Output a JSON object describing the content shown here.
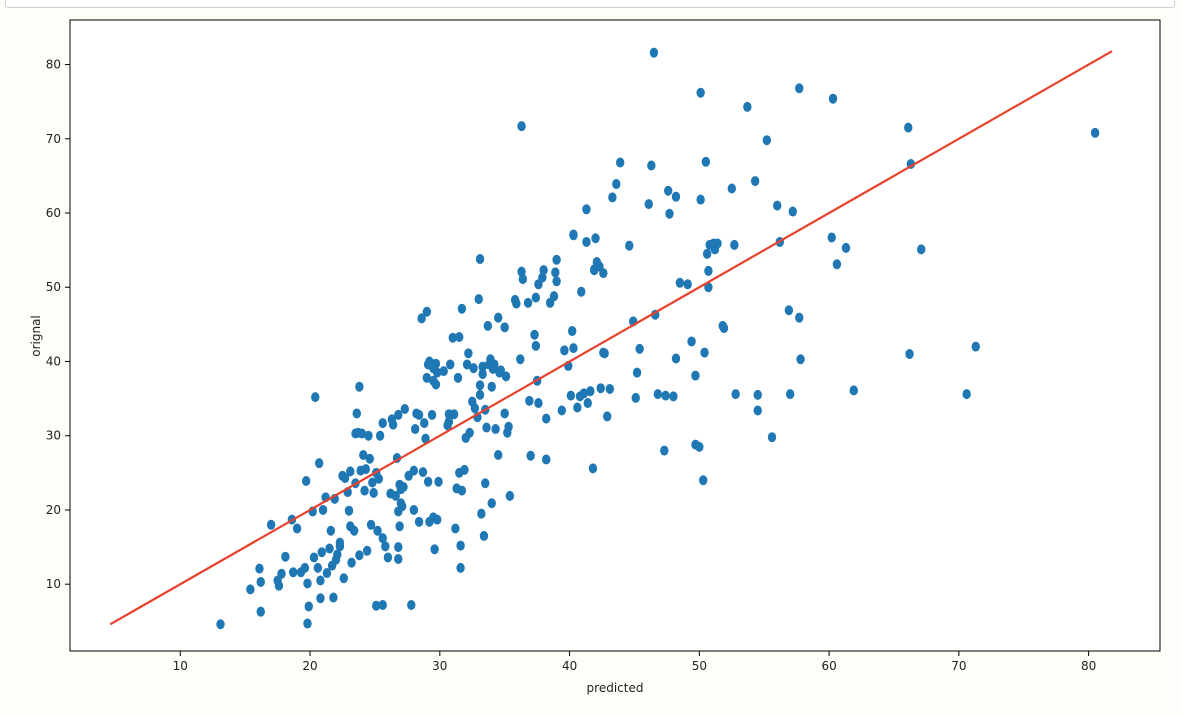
{
  "chart_data": {
    "type": "scatter",
    "title": "",
    "xlabel": "predicted",
    "ylabel": "orignal",
    "xlim": [
      1.5,
      85.5
    ],
    "ylim": [
      1,
      86
    ],
    "x_ticks": [
      10,
      20,
      30,
      40,
      50,
      60,
      70,
      80
    ],
    "y_ticks": [
      10,
      20,
      30,
      40,
      50,
      60,
      70,
      80
    ],
    "grid": false,
    "legend": "none",
    "colors": {
      "points": "#1f77b4",
      "line": "#e8412c",
      "background": "#fffdf8"
    },
    "reference_line": {
      "x": [
        4.6,
        81.8
      ],
      "y": [
        4.6,
        81.8
      ]
    },
    "series": [
      {
        "points": [
          [
            13.1,
            4.6
          ],
          [
            15.4,
            9.3
          ],
          [
            16.1,
            12.1
          ],
          [
            16.2,
            10.3
          ],
          [
            16.2,
            6.3
          ],
          [
            17.0,
            18.0
          ],
          [
            17.5,
            10.5
          ],
          [
            17.6,
            9.8
          ],
          [
            17.8,
            11.4
          ],
          [
            18.1,
            13.7
          ],
          [
            18.6,
            18.7
          ],
          [
            18.7,
            11.6
          ],
          [
            19.0,
            17.5
          ],
          [
            19.3,
            11.6
          ],
          [
            19.6,
            12.2
          ],
          [
            19.7,
            23.9
          ],
          [
            19.8,
            10.1
          ],
          [
            19.8,
            4.7
          ],
          [
            19.9,
            7.0
          ],
          [
            20.2,
            19.8
          ],
          [
            20.3,
            13.6
          ],
          [
            20.4,
            35.2
          ],
          [
            20.6,
            12.2
          ],
          [
            20.7,
            26.3
          ],
          [
            20.8,
            10.5
          ],
          [
            20.8,
            8.1
          ],
          [
            20.9,
            14.3
          ],
          [
            21.0,
            20.0
          ],
          [
            21.2,
            21.7
          ],
          [
            21.3,
            11.5
          ],
          [
            21.5,
            14.8
          ],
          [
            21.6,
            17.2
          ],
          [
            21.7,
            12.5
          ],
          [
            21.8,
            8.2
          ],
          [
            21.9,
            21.5
          ],
          [
            22.0,
            13.3
          ],
          [
            22.1,
            14.0
          ],
          [
            22.3,
            15.1
          ],
          [
            22.3,
            15.6
          ],
          [
            22.5,
            24.6
          ],
          [
            22.6,
            10.8
          ],
          [
            22.7,
            24.3
          ],
          [
            22.9,
            22.4
          ],
          [
            23.0,
            19.9
          ],
          [
            23.1,
            25.2
          ],
          [
            23.1,
            17.8
          ],
          [
            23.2,
            12.9
          ],
          [
            23.4,
            17.2
          ],
          [
            23.5,
            30.3
          ],
          [
            23.5,
            23.6
          ],
          [
            23.6,
            33.0
          ],
          [
            23.7,
            30.4
          ],
          [
            23.8,
            36.6
          ],
          [
            23.8,
            13.9
          ],
          [
            23.9,
            25.3
          ],
          [
            24.0,
            30.3
          ],
          [
            24.1,
            27.4
          ],
          [
            24.2,
            22.6
          ],
          [
            24.3,
            25.5
          ],
          [
            24.4,
            14.5
          ],
          [
            24.5,
            30.0
          ],
          [
            24.6,
            26.9
          ],
          [
            24.7,
            18.0
          ],
          [
            24.8,
            23.7
          ],
          [
            24.9,
            22.3
          ],
          [
            25.1,
            25.0
          ],
          [
            25.1,
            7.1
          ],
          [
            25.2,
            17.2
          ],
          [
            25.3,
            24.2
          ],
          [
            25.4,
            30.0
          ],
          [
            25.6,
            7.2
          ],
          [
            25.6,
            16.2
          ],
          [
            25.6,
            31.7
          ],
          [
            25.8,
            15.1
          ],
          [
            26.0,
            13.6
          ],
          [
            26.2,
            22.2
          ],
          [
            26.3,
            32.2
          ],
          [
            26.4,
            31.5
          ],
          [
            26.6,
            21.9
          ],
          [
            26.7,
            27.0
          ],
          [
            26.8,
            19.8
          ],
          [
            26.8,
            15.0
          ],
          [
            26.8,
            13.4
          ],
          [
            26.8,
            32.8
          ],
          [
            26.9,
            17.8
          ],
          [
            26.9,
            23.4
          ],
          [
            27.0,
            22.8
          ],
          [
            27.0,
            20.9
          ],
          [
            27.1,
            20.5
          ],
          [
            27.2,
            23.1
          ],
          [
            27.3,
            33.6
          ],
          [
            27.6,
            24.6
          ],
          [
            27.8,
            7.2
          ],
          [
            28.0,
            25.3
          ],
          [
            28.0,
            20.0
          ],
          [
            28.1,
            30.9
          ],
          [
            28.2,
            33.0
          ],
          [
            28.4,
            18.4
          ],
          [
            28.4,
            32.8
          ],
          [
            28.6,
            45.8
          ],
          [
            28.7,
            25.1
          ],
          [
            28.8,
            31.7
          ],
          [
            28.9,
            29.6
          ],
          [
            29.0,
            46.7
          ],
          [
            29.0,
            37.8
          ],
          [
            29.1,
            39.6
          ],
          [
            29.1,
            23.8
          ],
          [
            29.2,
            40.0
          ],
          [
            29.2,
            18.4
          ],
          [
            29.4,
            32.8
          ],
          [
            29.5,
            39.1
          ],
          [
            29.5,
            19.0
          ],
          [
            29.5,
            37.4
          ],
          [
            29.6,
            14.7
          ],
          [
            29.7,
            39.7
          ],
          [
            29.7,
            36.9
          ],
          [
            29.8,
            38.5
          ],
          [
            29.8,
            18.7
          ],
          [
            29.9,
            23.8
          ],
          [
            30.3,
            38.7
          ],
          [
            30.6,
            31.4
          ],
          [
            30.7,
            31.9
          ],
          [
            30.7,
            32.9
          ],
          [
            30.8,
            39.6
          ],
          [
            31.0,
            43.2
          ],
          [
            31.1,
            32.9
          ],
          [
            31.2,
            17.5
          ],
          [
            31.3,
            22.9
          ],
          [
            31.4,
            37.8
          ],
          [
            31.5,
            43.3
          ],
          [
            31.5,
            25.0
          ],
          [
            31.6,
            15.2
          ],
          [
            31.6,
            12.2
          ],
          [
            31.7,
            47.1
          ],
          [
            31.7,
            22.6
          ],
          [
            31.9,
            25.4
          ],
          [
            32.0,
            29.7
          ],
          [
            32.1,
            39.6
          ],
          [
            32.2,
            41.1
          ],
          [
            32.3,
            30.4
          ],
          [
            32.5,
            34.6
          ],
          [
            32.6,
            39.1
          ],
          [
            32.7,
            33.7
          ],
          [
            32.9,
            32.5
          ],
          [
            33.0,
            48.4
          ],
          [
            33.1,
            35.5
          ],
          [
            33.1,
            36.8
          ],
          [
            33.1,
            53.8
          ],
          [
            33.2,
            19.5
          ],
          [
            33.3,
            38.3
          ],
          [
            33.3,
            39.3
          ],
          [
            33.4,
            16.5
          ],
          [
            33.5,
            23.6
          ],
          [
            33.5,
            33.5
          ],
          [
            33.6,
            31.1
          ],
          [
            33.7,
            44.8
          ],
          [
            33.8,
            39.6
          ],
          [
            33.9,
            40.3
          ],
          [
            34.0,
            20.9
          ],
          [
            34.0,
            36.6
          ],
          [
            34.1,
            39.0
          ],
          [
            34.2,
            39.6
          ],
          [
            34.3,
            30.9
          ],
          [
            34.5,
            45.9
          ],
          [
            34.5,
            27.4
          ],
          [
            34.6,
            38.5
          ],
          [
            34.7,
            38.8
          ],
          [
            35.0,
            44.6
          ],
          [
            35.0,
            33.0
          ],
          [
            35.1,
            38.0
          ],
          [
            35.2,
            30.4
          ],
          [
            35.3,
            31.2
          ],
          [
            35.4,
            21.9
          ],
          [
            35.8,
            48.3
          ],
          [
            35.9,
            47.8
          ],
          [
            36.2,
            40.3
          ],
          [
            36.3,
            71.7
          ],
          [
            36.3,
            52.1
          ],
          [
            36.4,
            51.1
          ],
          [
            36.8,
            47.9
          ],
          [
            36.9,
            34.7
          ],
          [
            37.0,
            27.3
          ],
          [
            37.3,
            43.6
          ],
          [
            37.4,
            42.1
          ],
          [
            37.4,
            48.6
          ],
          [
            37.5,
            37.4
          ],
          [
            37.6,
            34.4
          ],
          [
            37.6,
            50.4
          ],
          [
            37.9,
            51.3
          ],
          [
            38.0,
            52.3
          ],
          [
            38.2,
            32.3
          ],
          [
            38.2,
            26.8
          ],
          [
            38.5,
            47.9
          ],
          [
            38.8,
            48.8
          ],
          [
            38.9,
            52.0
          ],
          [
            39.0,
            53.7
          ],
          [
            39.0,
            50.8
          ],
          [
            39.4,
            33.4
          ],
          [
            39.6,
            41.5
          ],
          [
            39.9,
            39.4
          ],
          [
            40.1,
            35.4
          ],
          [
            40.2,
            44.1
          ],
          [
            40.3,
            41.8
          ],
          [
            40.3,
            57.1
          ],
          [
            40.3,
            57.0
          ],
          [
            40.6,
            33.8
          ],
          [
            40.8,
            35.3
          ],
          [
            40.9,
            49.4
          ],
          [
            41.1,
            35.7
          ],
          [
            41.3,
            60.5
          ],
          [
            41.3,
            56.1
          ],
          [
            41.4,
            34.4
          ],
          [
            41.6,
            36.0
          ],
          [
            41.8,
            25.6
          ],
          [
            41.9,
            52.4
          ],
          [
            41.9,
            52.3
          ],
          [
            42.0,
            56.6
          ],
          [
            42.1,
            53.4
          ],
          [
            42.3,
            52.8
          ],
          [
            42.4,
            36.4
          ],
          [
            42.6,
            51.9
          ],
          [
            42.6,
            41.2
          ],
          [
            42.7,
            41.1
          ],
          [
            42.9,
            32.6
          ],
          [
            43.1,
            36.3
          ],
          [
            43.3,
            62.1
          ],
          [
            43.6,
            63.9
          ],
          [
            43.9,
            66.8
          ],
          [
            44.6,
            55.6
          ],
          [
            44.9,
            45.4
          ],
          [
            45.1,
            35.1
          ],
          [
            45.2,
            38.5
          ],
          [
            45.4,
            41.7
          ],
          [
            46.1,
            61.2
          ],
          [
            46.3,
            66.4
          ],
          [
            46.5,
            81.6
          ],
          [
            46.6,
            46.3
          ],
          [
            46.8,
            35.6
          ],
          [
            47.3,
            28.0
          ],
          [
            47.4,
            35.4
          ],
          [
            47.6,
            63.0
          ],
          [
            47.7,
            59.9
          ],
          [
            48.0,
            35.3
          ],
          [
            48.2,
            40.4
          ],
          [
            48.2,
            62.2
          ],
          [
            48.5,
            50.6
          ],
          [
            49.1,
            50.4
          ],
          [
            49.4,
            42.7
          ],
          [
            49.7,
            28.8
          ],
          [
            49.7,
            38.1
          ],
          [
            50.0,
            28.5
          ],
          [
            50.1,
            76.2
          ],
          [
            50.1,
            61.8
          ],
          [
            50.3,
            24.0
          ],
          [
            50.4,
            41.2
          ],
          [
            50.5,
            66.9
          ],
          [
            50.6,
            54.5
          ],
          [
            50.7,
            52.2
          ],
          [
            50.7,
            50.0
          ],
          [
            50.8,
            55.7
          ],
          [
            51.1,
            55.9
          ],
          [
            51.2,
            55.1
          ],
          [
            51.4,
            55.9
          ],
          [
            51.8,
            44.8
          ],
          [
            51.9,
            44.5
          ],
          [
            52.5,
            63.3
          ],
          [
            52.7,
            55.7
          ],
          [
            52.8,
            35.6
          ],
          [
            53.7,
            74.3
          ],
          [
            54.3,
            64.3
          ],
          [
            54.5,
            33.4
          ],
          [
            54.5,
            35.5
          ],
          [
            55.2,
            69.8
          ],
          [
            55.6,
            29.8
          ],
          [
            56.0,
            61.0
          ],
          [
            56.2,
            56.1
          ],
          [
            56.9,
            46.9
          ],
          [
            57.0,
            35.6
          ],
          [
            57.2,
            60.2
          ],
          [
            57.7,
            76.8
          ],
          [
            57.7,
            45.9
          ],
          [
            57.8,
            40.3
          ],
          [
            60.2,
            56.7
          ],
          [
            60.3,
            75.4
          ],
          [
            60.6,
            53.1
          ],
          [
            61.3,
            55.3
          ],
          [
            61.9,
            36.1
          ],
          [
            66.1,
            71.5
          ],
          [
            66.2,
            41.0
          ],
          [
            66.3,
            66.6
          ],
          [
            67.1,
            55.1
          ],
          [
            70.6,
            35.6
          ],
          [
            71.3,
            42.0
          ],
          [
            80.5,
            70.8
          ]
        ]
      }
    ]
  }
}
